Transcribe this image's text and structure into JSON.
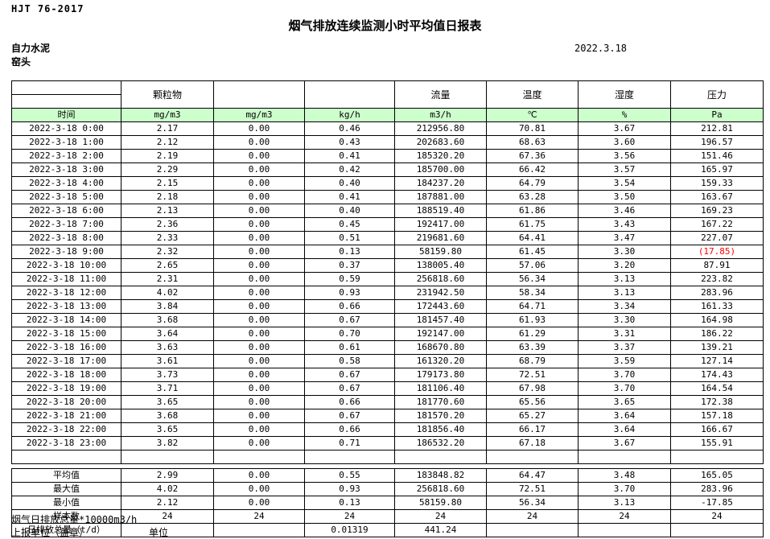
{
  "page": {
    "doc_code": "HJT  76-2017",
    "title": "烟气排放连续监测小时平均值日报表",
    "date": "2022.3.18",
    "company": "自力水泥",
    "station": "窑头",
    "footer_note": "烟气日排放总量*10000m3/h",
    "report_unit_label": "上报单位（盖章）",
    "unit_label": "单位"
  },
  "colors": {
    "unit_row_bg": "#ccffcc",
    "negative_value": "#ff0000",
    "border": "#000000"
  },
  "table": {
    "header_groups": [
      "",
      "颗粒物",
      "",
      "",
      "流量",
      "温度",
      "湿度",
      "压力"
    ],
    "unit_row": [
      "时间",
      "mg/m3",
      "mg/m3",
      "kg/h",
      "m3/h",
      "℃",
      "%",
      "Pa"
    ],
    "rows": [
      [
        "2022-3-18 0:00",
        "2.17",
        "0.00",
        "0.46",
        "212956.80",
        "70.81",
        "3.67",
        "212.81"
      ],
      [
        "2022-3-18 1:00",
        "2.12",
        "0.00",
        "0.43",
        "202683.60",
        "68.63",
        "3.60",
        "196.57"
      ],
      [
        "2022-3-18 2:00",
        "2.19",
        "0.00",
        "0.41",
        "185320.20",
        "67.36",
        "3.56",
        "151.46"
      ],
      [
        "2022-3-18 3:00",
        "2.29",
        "0.00",
        "0.42",
        "185700.00",
        "66.42",
        "3.57",
        "165.97"
      ],
      [
        "2022-3-18 4:00",
        "2.15",
        "0.00",
        "0.40",
        "184237.20",
        "64.79",
        "3.54",
        "159.33"
      ],
      [
        "2022-3-18 5:00",
        "2.18",
        "0.00",
        "0.41",
        "187881.00",
        "63.28",
        "3.50",
        "163.67"
      ],
      [
        "2022-3-18 6:00",
        "2.13",
        "0.00",
        "0.40",
        "188519.40",
        "61.86",
        "3.46",
        "169.23"
      ],
      [
        "2022-3-18 7:00",
        "2.36",
        "0.00",
        "0.45",
        "192417.00",
        "61.75",
        "3.43",
        "167.22"
      ],
      [
        "2022-3-18 8:00",
        "2.33",
        "0.00",
        "0.51",
        "219681.60",
        "64.41",
        "3.47",
        "227.07"
      ],
      [
        "2022-3-18 9:00",
        "2.32",
        "0.00",
        "0.13",
        "58159.80",
        "61.45",
        "3.30",
        "(17.85)"
      ],
      [
        "2022-3-18 10:00",
        "2.65",
        "0.00",
        "0.37",
        "138005.40",
        "57.06",
        "3.20",
        "87.91"
      ],
      [
        "2022-3-18 11:00",
        "2.31",
        "0.00",
        "0.59",
        "256818.60",
        "56.34",
        "3.13",
        "223.82"
      ],
      [
        "2022-3-18 12:00",
        "4.02",
        "0.00",
        "0.93",
        "231942.50",
        "58.34",
        "3.13",
        "283.96"
      ],
      [
        "2022-3-18 13:00",
        "3.84",
        "0.00",
        "0.66",
        "172443.60",
        "64.71",
        "3.34",
        "161.33"
      ],
      [
        "2022-3-18 14:00",
        "3.68",
        "0.00",
        "0.67",
        "181457.40",
        "61.93",
        "3.30",
        "164.98"
      ],
      [
        "2022-3-18 15:00",
        "3.64",
        "0.00",
        "0.70",
        "192147.00",
        "61.29",
        "3.31",
        "186.22"
      ],
      [
        "2022-3-18 16:00",
        "3.63",
        "0.00",
        "0.61",
        "168670.80",
        "63.39",
        "3.37",
        "139.21"
      ],
      [
        "2022-3-18 17:00",
        "3.61",
        "0.00",
        "0.58",
        "161320.20",
        "68.79",
        "3.59",
        "127.14"
      ],
      [
        "2022-3-18 18:00",
        "3.73",
        "0.00",
        "0.67",
        "179173.80",
        "72.51",
        "3.70",
        "174.43"
      ],
      [
        "2022-3-18 19:00",
        "3.71",
        "0.00",
        "0.67",
        "181106.40",
        "67.98",
        "3.70",
        "164.54"
      ],
      [
        "2022-3-18 20:00",
        "3.65",
        "0.00",
        "0.66",
        "181770.60",
        "65.56",
        "3.65",
        "172.38"
      ],
      [
        "2022-3-18 21:00",
        "3.68",
        "0.00",
        "0.67",
        "181570.20",
        "65.27",
        "3.64",
        "157.18"
      ],
      [
        "2022-3-18 22:00",
        "3.65",
        "0.00",
        "0.66",
        "181856.40",
        "66.17",
        "3.64",
        "166.67"
      ],
      [
        "2022-3-18 23:00",
        "3.82",
        "0.00",
        "0.71",
        "186532.20",
        "67.18",
        "3.67",
        "155.91"
      ],
      [
        "",
        "",
        "",
        "",
        "",
        "",
        "",
        ""
      ]
    ],
    "red_cells": [
      [
        9,
        7
      ]
    ],
    "summary_rows": [
      [
        "平均值",
        "2.99",
        "0.00",
        "0.55",
        "183848.82",
        "64.47",
        "3.48",
        "165.05"
      ],
      [
        "最大值",
        "4.02",
        "0.00",
        "0.93",
        "256818.60",
        "72.51",
        "3.70",
        "283.96"
      ],
      [
        "最小值",
        "2.12",
        "0.00",
        "0.13",
        "58159.80",
        "56.34",
        "3.13",
        "-17.85"
      ],
      [
        "样本数",
        "24",
        "24",
        "24",
        "24",
        "24",
        "24",
        "24"
      ],
      [
        "日排放总量（t/d）",
        "",
        "",
        "0.01319",
        "441.24",
        "",
        "",
        ""
      ]
    ]
  }
}
